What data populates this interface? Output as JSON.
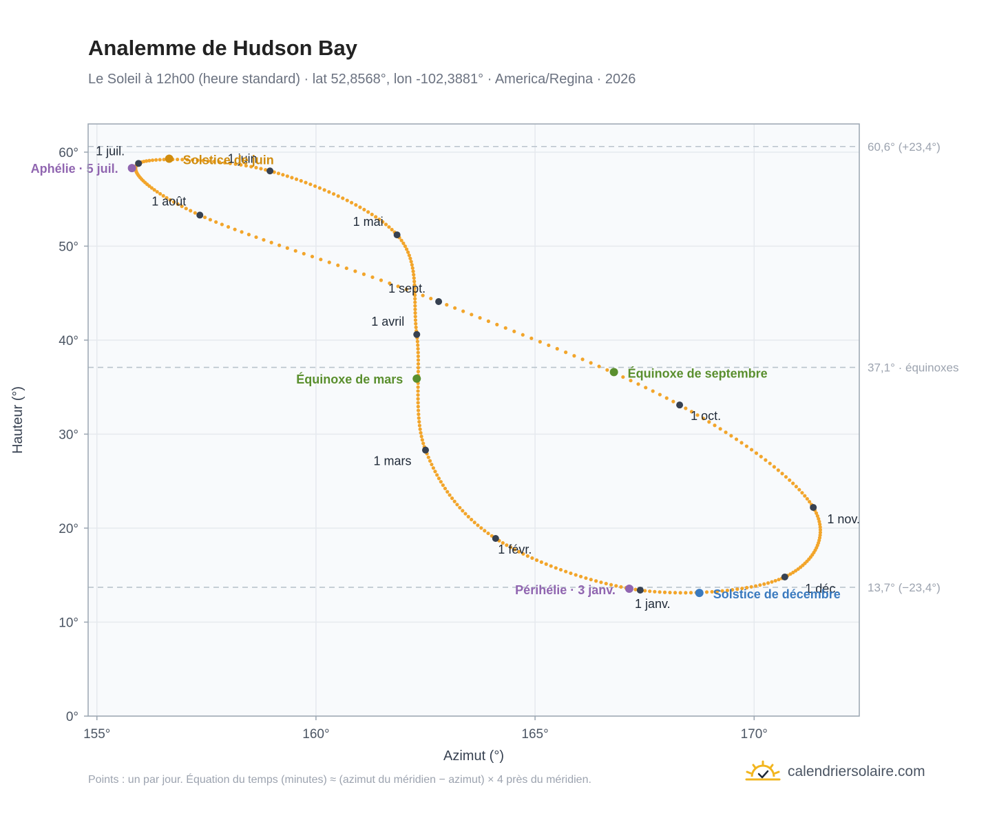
{
  "page": {
    "title": "Analemme de Hudson Bay",
    "subtitle": "Le Soleil à 12h00 (heure standard) · lat 52,8568°, lon -102,3881° · America/Regina · 2026",
    "footnote": "Points : un par jour. Équation du temps (minutes) ≈ (azimut du méridien − azimut) × 4 près du méridien.",
    "brand": "calendriersolaire.com",
    "brand_icon": "sun-check-icon"
  },
  "colors": {
    "curve": "#f2a52b",
    "month_marker": "#374151",
    "solstice_june": "#d08c0e",
    "equinox": "#5a8f2e",
    "solstice_december": "#3a7abf",
    "apsis": "#9065b0",
    "reference_line": "#b9c3cc",
    "grid": "#e5e9ee",
    "plot_bg": "#f8fafc",
    "plot_border": "#9aa5b1"
  },
  "chart_data": {
    "type": "scatter",
    "title": "Analemme de Hudson Bay",
    "xlabel": "Azimut (°)",
    "ylabel": "Hauteur (°)",
    "xlim": [
      154.8,
      172.4
    ],
    "ylim": [
      0,
      63
    ],
    "x_ticks": [
      155,
      160,
      165,
      170
    ],
    "x_tick_labels": [
      "155°",
      "160°",
      "165°",
      "170°"
    ],
    "y_ticks": [
      0,
      10,
      20,
      30,
      40,
      50,
      60
    ],
    "y_tick_labels": [
      "0°",
      "10°",
      "20°",
      "30°",
      "40°",
      "50°",
      "60°"
    ],
    "grid": true,
    "series": [
      {
        "role": "daily",
        "points_per": "day",
        "monthly_points": [
          {
            "label": "1 janv.",
            "x": 167.4,
            "y": 13.4
          },
          {
            "label": "1 févr.",
            "x": 164.1,
            "y": 18.9
          },
          {
            "label": "1 mars",
            "x": 162.5,
            "y": 28.3
          },
          {
            "label": "1 avril",
            "x": 162.3,
            "y": 40.6
          },
          {
            "label": "1 mai",
            "x": 161.85,
            "y": 51.2
          },
          {
            "label": "1 juin",
            "x": 158.95,
            "y": 58.0
          },
          {
            "label": "1 juil.",
            "x": 155.95,
            "y": 58.8
          },
          {
            "label": "1 août",
            "x": 157.35,
            "y": 53.3
          },
          {
            "label": "1 sept.",
            "x": 162.8,
            "y": 44.1
          },
          {
            "label": "1 oct.",
            "x": 168.3,
            "y": 33.1
          },
          {
            "label": "1 nov.",
            "x": 171.35,
            "y": 22.2
          },
          {
            "label": "1 déc.",
            "x": 170.7,
            "y": 14.8
          }
        ]
      }
    ],
    "events": [
      {
        "label": "Solstice de juin",
        "x": 156.65,
        "y": 59.3,
        "color_key": "solstice_june"
      },
      {
        "label": "Équinoxe de mars",
        "x": 162.3,
        "y": 35.9,
        "color_key": "equinox"
      },
      {
        "label": "Équinoxe de septembre",
        "x": 166.8,
        "y": 36.6,
        "color_key": "equinox"
      },
      {
        "label": "Solstice de décembre",
        "x": 168.75,
        "y": 13.1,
        "color_key": "solstice_december"
      },
      {
        "label": "Aphélie · 5 juil.",
        "x": 155.8,
        "y": 58.3,
        "color_key": "apsis"
      },
      {
        "label": "Périhélie · 3 janv.",
        "x": 167.15,
        "y": 13.55,
        "color_key": "apsis"
      }
    ],
    "reference_lines": [
      {
        "y": 60.6,
        "label": "60,6° (+23,4°)"
      },
      {
        "y": 37.1,
        "label": "37,1° · équinoxes"
      },
      {
        "y": 13.7,
        "label": "13,7° (−23,4°)"
      }
    ]
  }
}
